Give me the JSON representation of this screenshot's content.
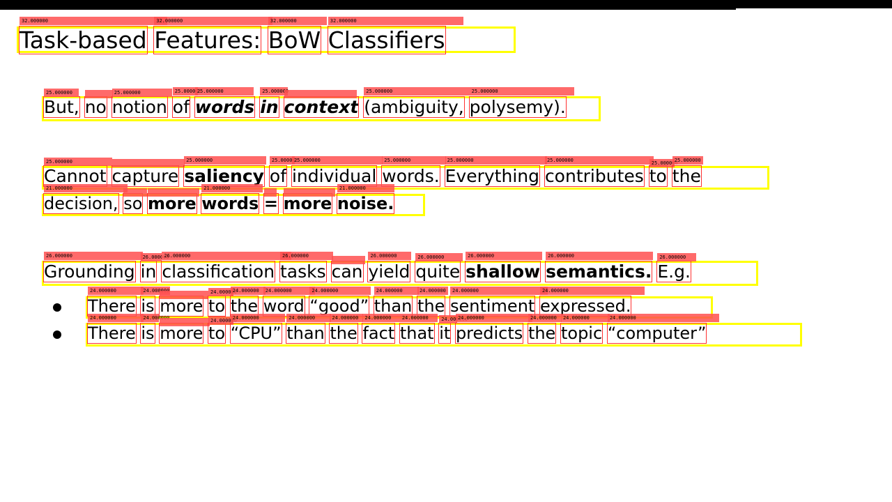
{
  "slide": {
    "title": [
      "Task-based",
      "Features:",
      "BoW",
      "Classifiers"
    ],
    "title_size_tag": "32.000000",
    "para1": {
      "size_tag": "25.000000",
      "words": [
        "But,",
        "no",
        "notion",
        "of",
        "words",
        "in",
        "context",
        "(ambiguity,",
        "polysemy)."
      ]
    },
    "para2": {
      "line1_size_tag": "25.000000",
      "line2_size_tag": "21.000000",
      "line1": [
        "Cannot",
        "capture",
        "saliency",
        "of",
        "individual",
        "words.",
        "Everything",
        "contributes",
        "to",
        "the"
      ],
      "line2": [
        "decision,",
        "so",
        "more",
        "words",
        "=",
        "more",
        "noise."
      ]
    },
    "para3": {
      "size_tag": "26.000000",
      "words": [
        "Grounding",
        "in",
        "classification",
        "tasks",
        "can",
        "yield",
        "quite",
        "shallow",
        "semantics.",
        "E.g."
      ]
    },
    "bullets": {
      "size_tag": "24.000000",
      "items": [
        [
          "There",
          "is",
          "more",
          "to",
          "the",
          "word",
          "“good”",
          "than",
          "the",
          "sentiment",
          "expressed."
        ],
        [
          "There",
          "is",
          "more",
          "to",
          "“CPU”",
          "than",
          "the",
          "fact",
          "that",
          "it",
          "predicts",
          "the",
          "topic",
          "“computer”"
        ]
      ]
    }
  }
}
